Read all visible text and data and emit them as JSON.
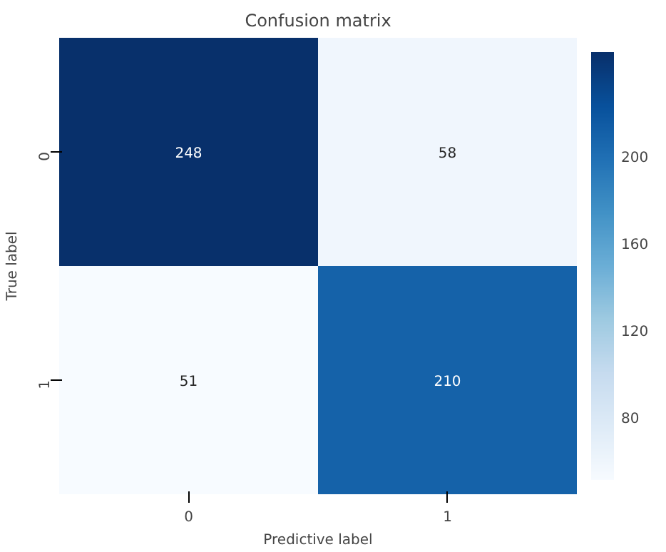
{
  "chart_data": {
    "type": "heatmap",
    "title": "Confusion matrix",
    "xlabel": "Predictive label",
    "ylabel": "True label",
    "categories": [
      "0",
      "1"
    ],
    "y_categories": [
      "0",
      "1"
    ],
    "cells": [
      [
        248,
        58
      ],
      [
        51,
        210
      ]
    ],
    "clim": [
      51,
      248
    ],
    "cticks": [
      80,
      120,
      160,
      200
    ],
    "data_labels": true
  }
}
